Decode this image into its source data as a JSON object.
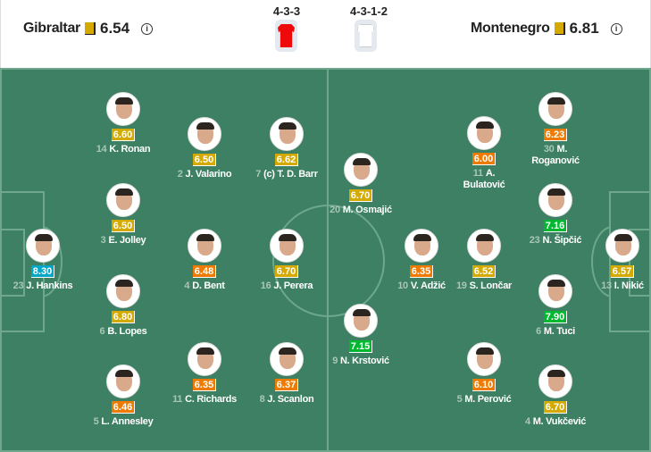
{
  "header": {
    "home": {
      "name": "Gibraltar",
      "rating": "6.54",
      "formation": "4-3-3",
      "kit_color": "#ee0a0a"
    },
    "away": {
      "name": "Montenegro",
      "rating": "6.81",
      "formation": "4-3-1-2",
      "kit_color": "#ffffff"
    },
    "rating_square_color": "#d4aa00",
    "info_icon": "i"
  },
  "colors": {
    "yellow": "#d4aa00",
    "orange": "#ee7a00",
    "green": "#00b830",
    "blue": "#00a7c8",
    "pitch": "#3d8063"
  },
  "home_players": [
    {
      "number": "14",
      "name": "K. Ronan",
      "rating": "6.60",
      "color": "yellow"
    },
    {
      "number": "2",
      "name": "J. Valarino",
      "rating": "6.50",
      "color": "yellow"
    },
    {
      "number": "7",
      "name": "(c) T. D. Barr",
      "rating": "6.62",
      "color": "yellow"
    },
    {
      "number": "3",
      "name": "E. Jolley",
      "rating": "6.50",
      "color": "yellow"
    },
    {
      "number": "23",
      "name": "J. Hankins",
      "rating": "8.30",
      "color": "blue"
    },
    {
      "number": "4",
      "name": "D. Bent",
      "rating": "6.48",
      "color": "orange"
    },
    {
      "number": "16",
      "name": "J. Perera",
      "rating": "6.70",
      "color": "yellow"
    },
    {
      "number": "6",
      "name": "B. Lopes",
      "rating": "6.80",
      "color": "yellow"
    },
    {
      "number": "11",
      "name": "C. Richards",
      "rating": "6.35",
      "color": "orange"
    },
    {
      "number": "8",
      "name": "J. Scanlon",
      "rating": "6.37",
      "color": "orange"
    },
    {
      "number": "5",
      "name": "L. Annesley",
      "rating": "6.46",
      "color": "orange"
    }
  ],
  "away_players": [
    {
      "number": "30",
      "name": "M. Roganović",
      "rating": "6.23",
      "color": "orange"
    },
    {
      "number": "11",
      "name": "A. Bulatović",
      "rating": "6.00",
      "color": "orange"
    },
    {
      "number": "20",
      "name": "M. Osmajić",
      "rating": "6.70",
      "color": "yellow"
    },
    {
      "number": "23",
      "name": "N. Šipčić",
      "rating": "7.16",
      "color": "green"
    },
    {
      "number": "10",
      "name": "V. Adžić",
      "rating": "6.35",
      "color": "orange"
    },
    {
      "number": "19",
      "name": "S. Lončar",
      "rating": "6.52",
      "color": "yellow"
    },
    {
      "number": "13",
      "name": "I. Nikić",
      "rating": "6.57",
      "color": "yellow"
    },
    {
      "number": "9",
      "name": "N. Krstović",
      "rating": "7.15",
      "color": "green"
    },
    {
      "number": "6",
      "name": "M. Tuci",
      "rating": "7.90",
      "color": "green"
    },
    {
      "number": "5",
      "name": "M. Perović",
      "rating": "6.10",
      "color": "orange"
    },
    {
      "number": "4",
      "name": "M. Vukčević",
      "rating": "6.70",
      "color": "yellow"
    }
  ]
}
